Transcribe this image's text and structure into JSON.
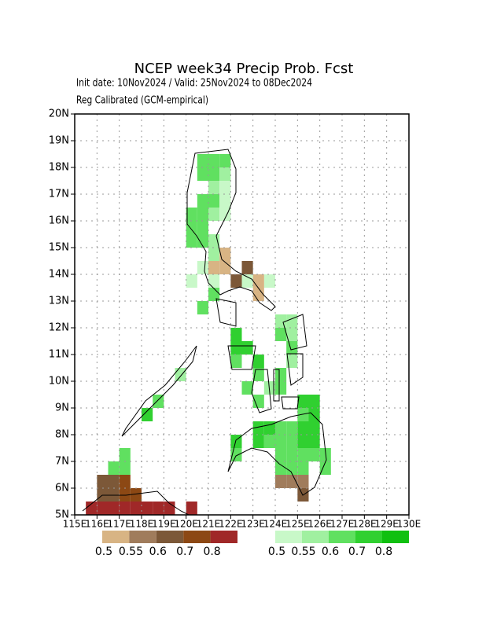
{
  "chart_data": {
    "type": "grid-map",
    "title": "NCEP week34 Precip Prob. Fcst",
    "subtitle": "Init date: 10Nov2024 / Valid: 25Nov2024 to 08Dec2024",
    "subtitle2": "Reg Calibrated (GCM-empirical)",
    "xlim": [
      115,
      130
    ],
    "ylim": [
      5,
      20
    ],
    "cell_size": 0.5,
    "xticks": [
      {
        "value": 115,
        "label": "115E"
      },
      {
        "value": 116,
        "label": "116E"
      },
      {
        "value": 117,
        "label": "117E"
      },
      {
        "value": 118,
        "label": "118E"
      },
      {
        "value": 119,
        "label": "119E"
      },
      {
        "value": 120,
        "label": "120E"
      },
      {
        "value": 121,
        "label": "121E"
      },
      {
        "value": 122,
        "label": "122E"
      },
      {
        "value": 123,
        "label": "123E"
      },
      {
        "value": 124,
        "label": "124E"
      },
      {
        "value": 125,
        "label": "125E"
      },
      {
        "value": 126,
        "label": "126E"
      },
      {
        "value": 127,
        "label": "127E"
      },
      {
        "value": 128,
        "label": "128E"
      },
      {
        "value": 129,
        "label": "129E"
      },
      {
        "value": 130,
        "label": "130E"
      }
    ],
    "yticks": [
      {
        "value": 5,
        "label": "5N"
      },
      {
        "value": 6,
        "label": "6N"
      },
      {
        "value": 7,
        "label": "7N"
      },
      {
        "value": 8,
        "label": "8N"
      },
      {
        "value": 9,
        "label": "9N"
      },
      {
        "value": 10,
        "label": "10N"
      },
      {
        "value": 11,
        "label": "11N"
      },
      {
        "value": 12,
        "label": "12N"
      },
      {
        "value": 13,
        "label": "13N"
      },
      {
        "value": 14,
        "label": "14N"
      },
      {
        "value": 15,
        "label": "15N"
      },
      {
        "value": 16,
        "label": "16N"
      },
      {
        "value": 17,
        "label": "17N"
      },
      {
        "value": 18,
        "label": "18N"
      },
      {
        "value": 19,
        "label": "19N"
      },
      {
        "value": 20,
        "label": "20N"
      }
    ],
    "grid": true,
    "dry_levels": [
      0.5,
      0.55,
      0.6,
      0.7,
      0.8
    ],
    "dry_colors": [
      "#d8b484",
      "#a07c5c",
      "#7c5838",
      "#8c4814",
      "#a02828"
    ],
    "wet_levels": [
      0.5,
      0.55,
      0.6,
      0.7,
      0.8
    ],
    "wet_colors": [
      "#c8f8c8",
      "#a0f0a0",
      "#60e060",
      "#30d030",
      "#10c010"
    ],
    "wet_cells": [
      [
        120.5,
        18,
        0.6
      ],
      [
        121,
        18,
        0.6
      ],
      [
        121.5,
        18,
        0.6
      ],
      [
        120.5,
        17.5,
        0.6
      ],
      [
        121,
        17.5,
        0.6
      ],
      [
        121.5,
        17.5,
        0.55
      ],
      [
        121,
        17,
        0.55
      ],
      [
        121.5,
        17,
        0.5
      ],
      [
        121,
        16.5,
        0.6
      ],
      [
        121.5,
        16.5,
        0.5
      ],
      [
        120.5,
        16.5,
        0.6
      ],
      [
        120,
        16,
        0.6
      ],
      [
        120.5,
        16,
        0.6
      ],
      [
        121,
        16,
        0.55
      ],
      [
        121.5,
        16,
        0.5
      ],
      [
        120,
        15.5,
        0.6
      ],
      [
        120.5,
        15.5,
        0.6
      ],
      [
        120,
        15,
        0.6
      ],
      [
        120.5,
        15,
        0.6
      ],
      [
        121,
        15,
        0.55
      ],
      [
        121,
        14.5,
        0.55
      ],
      [
        120.5,
        14,
        0.5
      ],
      [
        120,
        13.5,
        0.5
      ],
      [
        121,
        13.5,
        0.5
      ],
      [
        121,
        13,
        0.6
      ],
      [
        120.5,
        12.5,
        0.6
      ],
      [
        122.5,
        13.5,
        0.5
      ],
      [
        123.5,
        13.5,
        0.5
      ],
      [
        124,
        12,
        0.55
      ],
      [
        124.5,
        12,
        0.55
      ],
      [
        124.5,
        11.5,
        0.55
      ],
      [
        124,
        11.5,
        0.6
      ],
      [
        122,
        11.5,
        0.7
      ],
      [
        122,
        11,
        0.7
      ],
      [
        122.5,
        11,
        0.7
      ],
      [
        122,
        10.5,
        0.6
      ],
      [
        123,
        10.5,
        0.7
      ],
      [
        123,
        10,
        0.6
      ],
      [
        124.5,
        11,
        0.6
      ],
      [
        124.5,
        10.5,
        0.55
      ],
      [
        124,
        10,
        0.6
      ],
      [
        122.5,
        9.5,
        0.6
      ],
      [
        123,
        9,
        0.6
      ],
      [
        123.5,
        9.5,
        0.55
      ],
      [
        124,
        9.5,
        0.6
      ],
      [
        119.5,
        10,
        0.55
      ],
      [
        118.5,
        9,
        0.6
      ],
      [
        118,
        8.5,
        0.7
      ],
      [
        125,
        9,
        0.7
      ],
      [
        125.5,
        9,
        0.7
      ],
      [
        125,
        8.5,
        0.6
      ],
      [
        125.5,
        8.5,
        0.7
      ],
      [
        125,
        8,
        0.7
      ],
      [
        125.5,
        8,
        0.7
      ],
      [
        123,
        8,
        0.7
      ],
      [
        123.5,
        8,
        0.7
      ],
      [
        124,
        8,
        0.6
      ],
      [
        124.5,
        8,
        0.6
      ],
      [
        123,
        7.5,
        0.7
      ],
      [
        123.5,
        7.5,
        0.6
      ],
      [
        124,
        7.5,
        0.6
      ],
      [
        124.5,
        7.5,
        0.6
      ],
      [
        125,
        7.5,
        0.7
      ],
      [
        125.5,
        7.5,
        0.7
      ],
      [
        122,
        7.5,
        0.7
      ],
      [
        122,
        7,
        0.6
      ],
      [
        124,
        7,
        0.6
      ],
      [
        124.5,
        7,
        0.6
      ],
      [
        125,
        7,
        0.6
      ],
      [
        125.5,
        7,
        0.6
      ],
      [
        126,
        7,
        0.6
      ],
      [
        124,
        6.5,
        0.6
      ],
      [
        124.5,
        6.5,
        0.6
      ],
      [
        125,
        6.5,
        0.6
      ],
      [
        126,
        6.5,
        0.6
      ],
      [
        117,
        7,
        0.6
      ],
      [
        116.5,
        6.5,
        0.6
      ],
      [
        117,
        6.5,
        0.6
      ]
    ],
    "dry_cells": [
      [
        121.5,
        14.5,
        0.5
      ],
      [
        121,
        14,
        0.5
      ],
      [
        121.5,
        14,
        0.5
      ],
      [
        122.5,
        14,
        0.6
      ],
      [
        122,
        13.5,
        0.6
      ],
      [
        123,
        13.5,
        0.5
      ],
      [
        123,
        13,
        0.5
      ],
      [
        124,
        6,
        0.55
      ],
      [
        124.5,
        6,
        0.55
      ],
      [
        125,
        6,
        0.55
      ],
      [
        125,
        5.5,
        0.6
      ],
      [
        116,
        6,
        0.6
      ],
      [
        116.5,
        6,
        0.6
      ],
      [
        116,
        5.5,
        0.6
      ],
      [
        116.5,
        5.5,
        0.6
      ],
      [
        117,
        6,
        0.7
      ],
      [
        117,
        5.5,
        0.7
      ],
      [
        117.5,
        5.5,
        0.7
      ],
      [
        115.5,
        5,
        0.8
      ],
      [
        116,
        5,
        0.8
      ],
      [
        116.5,
        5,
        0.8
      ],
      [
        117,
        5,
        0.8
      ],
      [
        117.5,
        5,
        0.8
      ],
      [
        118,
        5,
        0.8
      ],
      [
        118.5,
        5,
        0.8
      ],
      [
        119,
        5,
        0.8
      ],
      [
        120,
        5,
        0.8
      ]
    ]
  }
}
